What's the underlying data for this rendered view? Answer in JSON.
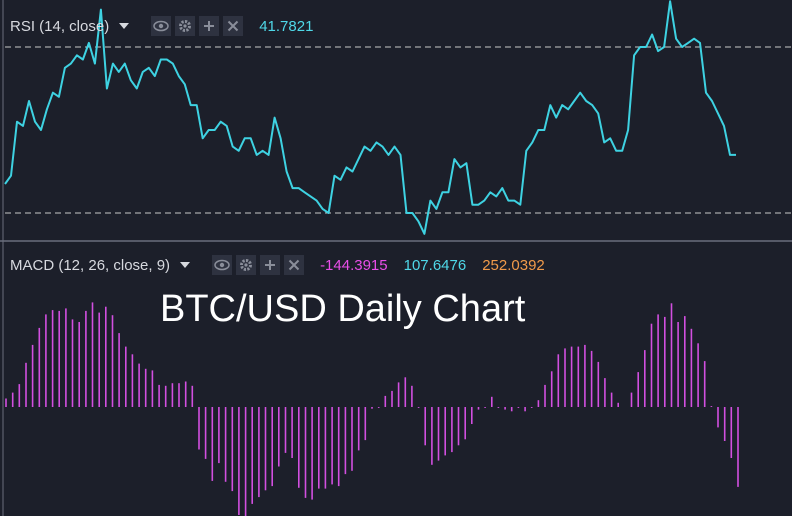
{
  "title": "BTC/USD Daily Chart",
  "rsi": {
    "label": "RSI (14, close)",
    "value": "41.7821",
    "value_color": "#4fd8e8",
    "line_color": "#3ed2e2",
    "upper_band": 70,
    "lower_band": 30,
    "points": [
      37,
      39,
      52,
      51,
      57,
      52,
      50,
      55,
      59,
      58,
      65,
      66,
      68,
      67,
      71,
      66,
      79,
      60,
      66,
      64,
      66,
      62,
      60,
      64,
      65,
      63,
      67,
      67,
      66,
      63,
      61,
      56,
      56,
      48,
      50,
      50,
      52,
      51,
      46,
      45,
      48,
      48,
      44,
      45,
      44,
      53,
      48,
      40,
      36,
      36,
      35,
      34,
      33,
      31,
      30,
      39,
      38,
      41,
      40,
      43,
      46,
      45,
      47,
      46,
      44,
      46,
      44,
      30,
      30,
      28,
      25,
      33,
      31,
      35,
      35,
      43,
      41,
      42,
      32,
      32,
      33,
      35,
      34,
      36,
      33,
      33,
      32,
      45,
      47,
      50,
      50,
      56,
      53,
      56,
      55,
      57,
      59,
      57,
      56,
      54,
      47,
      48,
      45,
      45,
      50,
      68,
      70,
      70,
      73,
      69,
      70,
      81,
      72,
      70,
      71,
      72,
      71,
      59,
      57,
      54,
      51,
      44,
      44
    ],
    "yrange": [
      14,
      82
    ]
  },
  "macd": {
    "label": "MACD (12, 26, close, 9)",
    "values": [
      "-144.3915",
      "107.6476",
      "252.0392"
    ],
    "value_colors": [
      "#e84ee8",
      "#4fd8e8",
      "#f09a4a"
    ],
    "histogram_color": "#d24fe0",
    "histogram": [
      10,
      17,
      27,
      52,
      73,
      93,
      109,
      114,
      113,
      116,
      103,
      100,
      113,
      123,
      111,
      118,
      108,
      87,
      71,
      62,
      51,
      45,
      43,
      26,
      25,
      28,
      28,
      30,
      25,
      -50,
      -61,
      -87,
      -66,
      -88,
      -99,
      -127,
      -134,
      -114,
      -106,
      -98,
      -93,
      -70,
      -54,
      -60,
      -95,
      -107,
      -109,
      -96,
      -96,
      -91,
      -93,
      -79,
      -75,
      -51,
      -39,
      -2,
      -1,
      13,
      19,
      29,
      35,
      25,
      -1,
      -45,
      -68,
      -63,
      -57,
      -53,
      -45,
      -38,
      -20,
      -3,
      -1,
      12,
      -1,
      -3,
      -5,
      -1,
      -5,
      -1,
      8,
      26,
      42,
      62,
      69,
      71,
      71,
      73,
      66,
      53,
      34,
      17,
      5,
      0,
      17,
      41,
      67,
      98,
      109,
      106,
      122,
      100,
      107,
      92,
      75,
      54,
      1,
      -24,
      -40,
      -60,
      -94
    ],
    "yrange": [
      -160,
      140
    ]
  }
}
